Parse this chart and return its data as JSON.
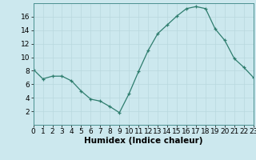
{
  "x": [
    0,
    1,
    2,
    3,
    4,
    5,
    6,
    7,
    8,
    9,
    10,
    11,
    12,
    13,
    14,
    15,
    16,
    17,
    18,
    19,
    20,
    21,
    22,
    23
  ],
  "y": [
    8.2,
    6.8,
    7.2,
    7.2,
    6.5,
    5.0,
    3.8,
    3.5,
    2.7,
    1.8,
    4.6,
    7.9,
    11.0,
    13.5,
    14.8,
    16.1,
    17.2,
    17.5,
    17.2,
    14.2,
    12.5,
    9.8,
    8.5,
    7.0
  ],
  "xlabel": "Humidex (Indice chaleur)",
  "ylim": [
    0,
    18
  ],
  "xlim": [
    0,
    23
  ],
  "yticks": [
    2,
    4,
    6,
    8,
    10,
    12,
    14,
    16
  ],
  "xticks": [
    0,
    1,
    2,
    3,
    4,
    5,
    6,
    7,
    8,
    9,
    10,
    11,
    12,
    13,
    14,
    15,
    16,
    17,
    18,
    19,
    20,
    21,
    22,
    23
  ],
  "line_color": "#2e7d6e",
  "marker": "+",
  "bg_color": "#cce8ee",
  "grid_color": "#b8d8de",
  "tick_label_fontsize": 6.5,
  "xlabel_fontsize": 7.5
}
